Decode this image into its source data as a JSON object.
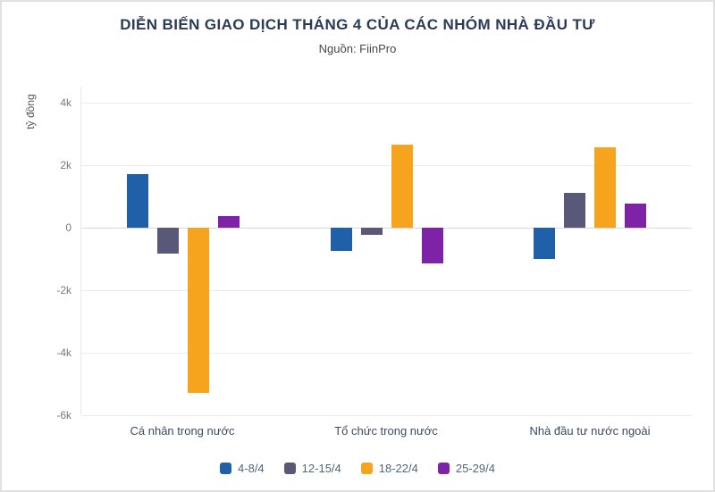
{
  "chart_data": {
    "type": "bar",
    "title": "DIỄN BIẾN GIAO DỊCH THÁNG 4 CỦA CÁC NHÓM NHÀ ĐẦU TƯ",
    "subtitle": "Nguồn: FiinPro",
    "ylabel": "tỷ đồng",
    "xlabel": "",
    "categories": [
      "Cá nhân trong nước",
      "Tổ chức trong nước",
      "Nhà đầu tư nước ngoài"
    ],
    "series": [
      {
        "name": "4-8/4",
        "color": "#1f60a9",
        "values": [
          1700,
          -750,
          -1000
        ]
      },
      {
        "name": "12-15/4",
        "color": "#5a5878",
        "values": [
          -850,
          -250,
          1100
        ]
      },
      {
        "name": "18-22/4",
        "color": "#f6a31d",
        "values": [
          -5300,
          2650,
          2550
        ]
      },
      {
        "name": "25-29/4",
        "color": "#7e22a8",
        "values": [
          350,
          -1150,
          750
        ]
      }
    ],
    "ylim": [
      -6000,
      4500
    ],
    "yticks": [
      {
        "value": 4000,
        "label": "4k"
      },
      {
        "value": 2000,
        "label": "2k"
      },
      {
        "value": 0,
        "label": "0"
      },
      {
        "value": -2000,
        "label": "-2k"
      },
      {
        "value": -4000,
        "label": "-4k"
      },
      {
        "value": -6000,
        "label": "-6k"
      }
    ],
    "grid": true,
    "legend_position": "bottom"
  }
}
